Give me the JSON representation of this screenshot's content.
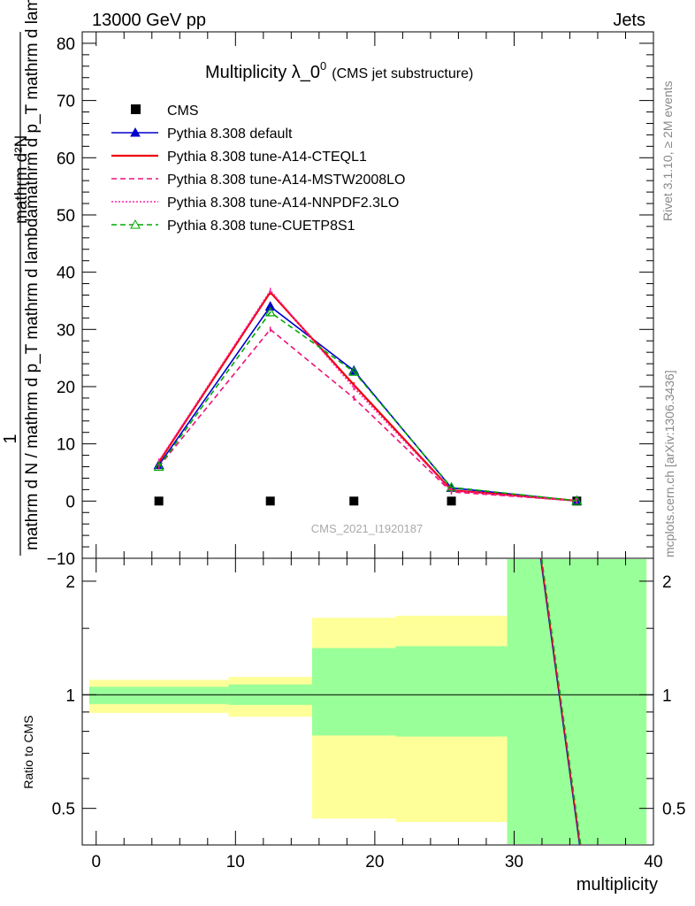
{
  "header": {
    "left": "13000 GeV pp",
    "right": "Jets"
  },
  "side_labels": {
    "rivet": "Rivet 3.1.10, ≥ 2M events",
    "mcplots": "mcplots.cern.ch [arXiv:1306.3436]"
  },
  "watermark": "CMS_2021_I1920187",
  "chart_data": {
    "type": "line",
    "title": "Multiplicity λ_0",
    "title_sup": "0",
    "title_suffix": "(CMS jet substructure)",
    "ylabel_top": "1",
    "ylabel_numerator": "mathrm d²N",
    "ylabel_numerator_2": "mathrm d p_T mathrm d lambda",
    "ylabel_denominator": "mathrm d N / mathrm d p_T mathrm d lambda",
    "ylabel": "1 / (mathrm d N / mathrm d p_T mathrm d lambda) · mathrm d²N / (mathrm d p_T mathrm d lambda)",
    "xlabel": "multiplicity",
    "ratio_ylabel": "Ratio to CMS",
    "xlim": [
      -1,
      40
    ],
    "ylim": [
      -10,
      82
    ],
    "ratio_ylim": [
      0.4,
      2.3
    ],
    "x_ticks": [
      "0",
      "10",
      "20",
      "30",
      "40"
    ],
    "y_ticks": [
      "−10",
      "0",
      "10",
      "20",
      "30",
      "40",
      "50",
      "60",
      "70",
      "80"
    ],
    "ratio_ticks": [
      "0.5",
      "1",
      "2"
    ],
    "x": [
      4.5,
      12.5,
      18.5,
      25.5,
      34.5
    ],
    "series": [
      {
        "name": "CMS",
        "values": [
          0,
          0,
          0,
          0,
          0
        ],
        "color": "#000000",
        "style": "marker"
      },
      {
        "name": "Pythia 8.308 default",
        "values": [
          6.3,
          34.0,
          22.8,
          2.3,
          0.05
        ],
        "color": "#0000cc",
        "style": "solid-triangle"
      },
      {
        "name": "Pythia 8.308 tune-A14-CTEQL1",
        "values": [
          6.8,
          36.5,
          20.3,
          1.9,
          0.05
        ],
        "color": "#ee0000",
        "style": "solid"
      },
      {
        "name": "Pythia 8.308 tune-A14-MSTW2008LO",
        "values": [
          6.0,
          30.0,
          18.0,
          1.6,
          0.05
        ],
        "color": "#ee1177",
        "style": "dashed"
      },
      {
        "name": "Pythia 8.308 tune-A14-NNPDF2.3LO",
        "values": [
          7.0,
          36.8,
          19.8,
          1.8,
          0.05
        ],
        "color": "#ff22aa",
        "style": "dotted"
      },
      {
        "name": "Pythia 8.308 tune-CUETP8S1",
        "values": [
          6.0,
          33.0,
          22.6,
          2.4,
          0.05
        ],
        "color": "#00aa00",
        "style": "dashed-open-triangle"
      }
    ],
    "ratio_bands": [
      {
        "x0": -0.5,
        "x1": 9.5,
        "yellow": [
          0.895,
          1.095
        ],
        "green": [
          0.945,
          1.05
        ]
      },
      {
        "x0": 9.5,
        "x1": 15.5,
        "yellow": [
          0.875,
          1.115
        ],
        "green": [
          0.94,
          1.065
        ]
      },
      {
        "x0": 15.5,
        "x1": 21.5,
        "yellow": [
          0.47,
          1.6
        ],
        "green": [
          0.78,
          1.33
        ]
      },
      {
        "x0": 21.5,
        "x1": 29.5,
        "yellow": [
          0.46,
          1.62
        ],
        "green": [
          0.775,
          1.345
        ]
      },
      {
        "x0": 29.5,
        "x1": 39.5,
        "yellow": [
          0.4,
          2.3
        ],
        "green": [
          0.4,
          2.3
        ]
      }
    ],
    "ratio_lines": {
      "x": [
        31.9,
        34.7
      ],
      "values": [
        2.3,
        0.4
      ]
    }
  }
}
